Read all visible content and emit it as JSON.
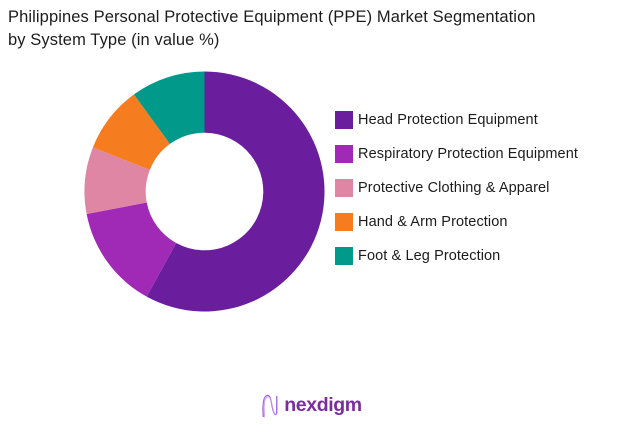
{
  "header": {
    "line1": "Philippines Personal Protective Equipment (PPE) Market Segmentation",
    "line2": "by System Type (in value %)"
  },
  "chart_data": {
    "type": "pie",
    "subtype": "donut",
    "title": "Philippines Personal Protective Equipment (PPE) Market Segmentation by System Type (in value %)",
    "unit": "value %",
    "direction": "clockwise",
    "start_angle_deg": 0,
    "inner_radius_ratio": 0.49,
    "data_labels_shown": false,
    "legend_position": "right",
    "categories": [
      "Head Protection Equipment",
      "Respiratory Protection Equipment",
      "Protective Clothing & Apparel",
      "Hand & Arm Protection",
      "Foot & Leg Protection"
    ],
    "values": [
      58,
      14,
      9,
      9,
      10
    ],
    "colors": [
      "#6A1D9C",
      "#A02AB5",
      "#DE86A3",
      "#F57D20",
      "#00998A"
    ]
  },
  "footer": {
    "brand": "nexdigm",
    "brand_color": "#7C2BA1"
  },
  "theme": {
    "background": "#FFFFFF",
    "text_color": "#1C1C1C"
  }
}
